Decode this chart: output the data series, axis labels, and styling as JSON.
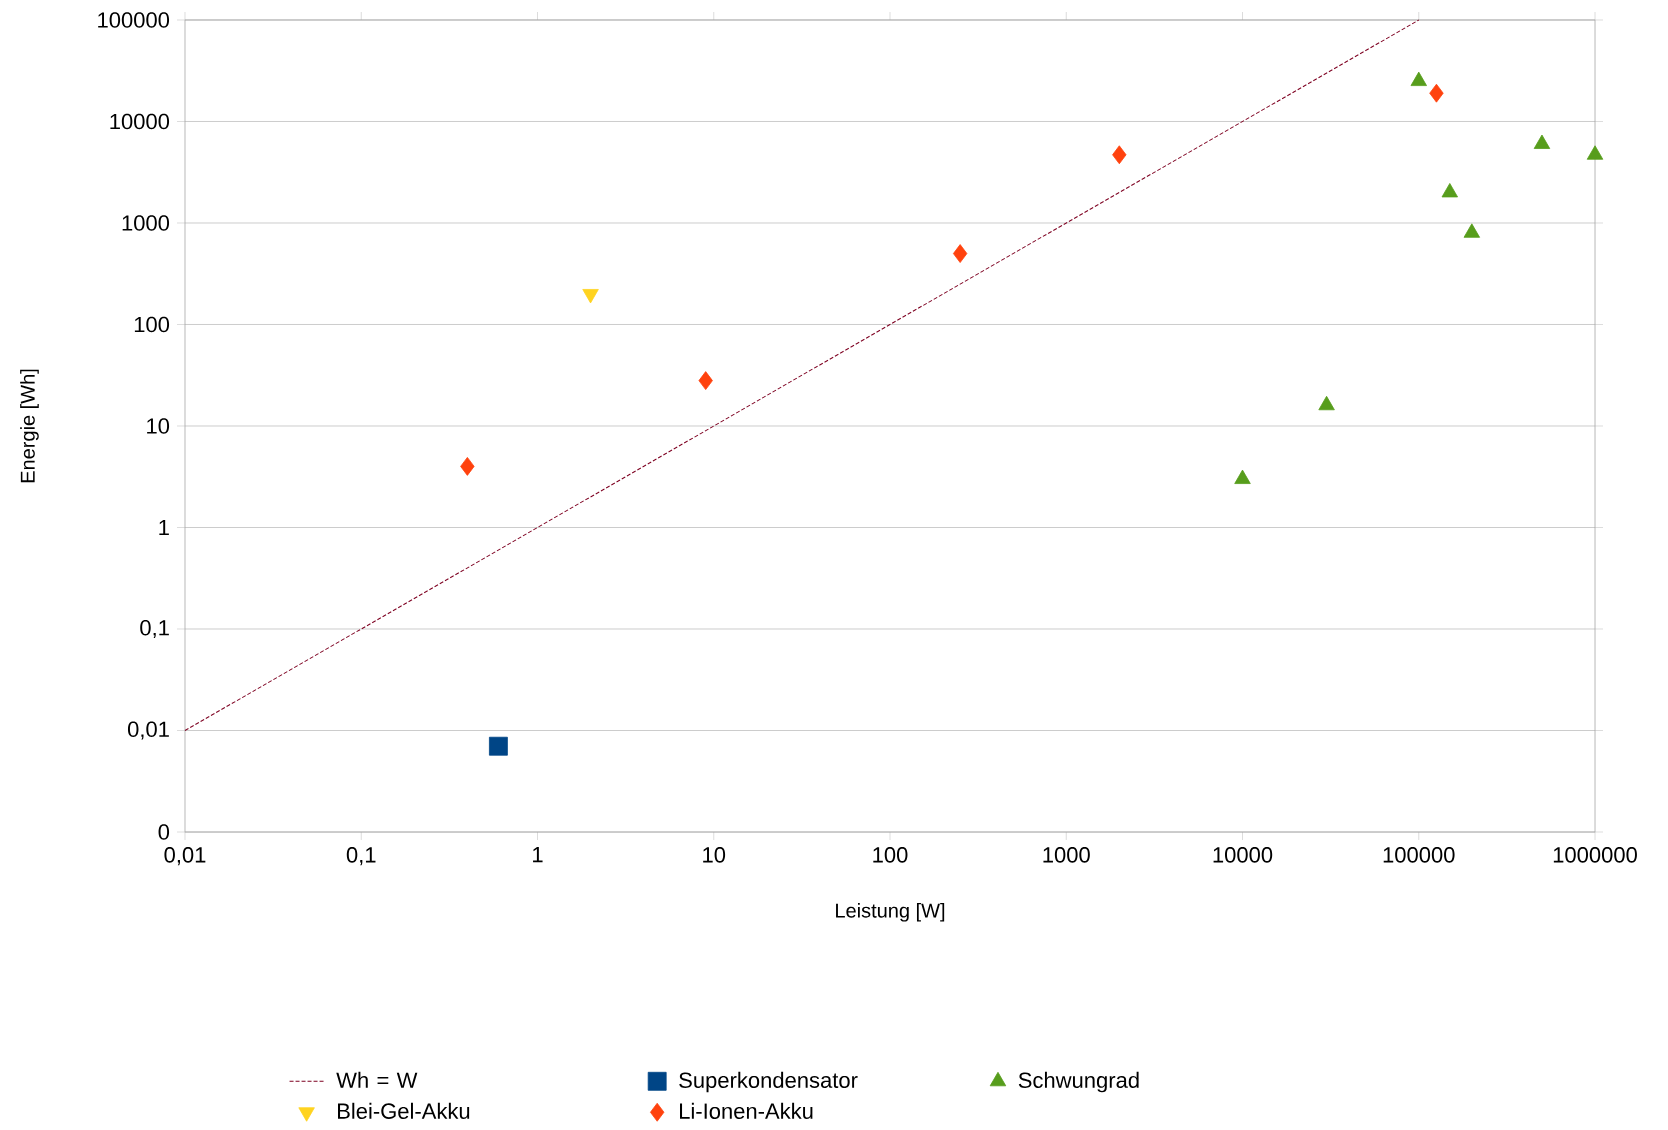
{
  "chart_data": {
    "type": "scatter",
    "xlabel": "Leistung [W]",
    "ylabel": "Energie [Wh]",
    "log": "xy",
    "grid": "y",
    "legend": "bottom",
    "xlim": [
      0.01,
      1000000
    ],
    "ylim": [
      0.001,
      100000
    ],
    "xticks": [
      {
        "value": 0.01,
        "label": "0,01"
      },
      {
        "value": 0.1,
        "label": "0,1"
      },
      1,
      10,
      100,
      1000,
      10000,
      100000,
      1000000
    ],
    "yticks": [
      {
        "value": 0.001,
        "label": "0"
      },
      {
        "value": 0.01,
        "label": "0,01"
      },
      {
        "value": 0.1,
        "label": "0,1"
      },
      1,
      10,
      100,
      1000,
      10000,
      100000
    ],
    "series": [
      {
        "name": "Wh = W",
        "type": "line",
        "line_style": "dashed",
        "marker": "none",
        "color": "#7e0021",
        "x": [
          0.01,
          100000
        ],
        "values": [
          0.01,
          100000
        ]
      },
      {
        "name": "Superkondensator",
        "marker": "square",
        "color": "#004586",
        "x": [
          0.6
        ],
        "values": [
          0.007
        ]
      },
      {
        "name": "Schwungrad",
        "marker": "triangle",
        "color": "#579d1c",
        "x": [
          10000,
          30000,
          100000,
          150000,
          200000,
          500000,
          1000000
        ],
        "values": [
          3,
          16,
          25000,
          2000,
          800,
          6000,
          4700
        ]
      },
      {
        "name": "Blei-Gel-Akku",
        "marker": "triangle-down",
        "color": "#ffd320",
        "x": [
          2
        ],
        "values": [
          200
        ]
      },
      {
        "name": "Li-Ionen-Akku",
        "marker": "diamond",
        "color": "#ff420e",
        "x": [
          0.4,
          9,
          250,
          2000,
          126000
        ],
        "values": [
          4,
          28,
          500,
          4700,
          19000
        ]
      }
    ]
  }
}
